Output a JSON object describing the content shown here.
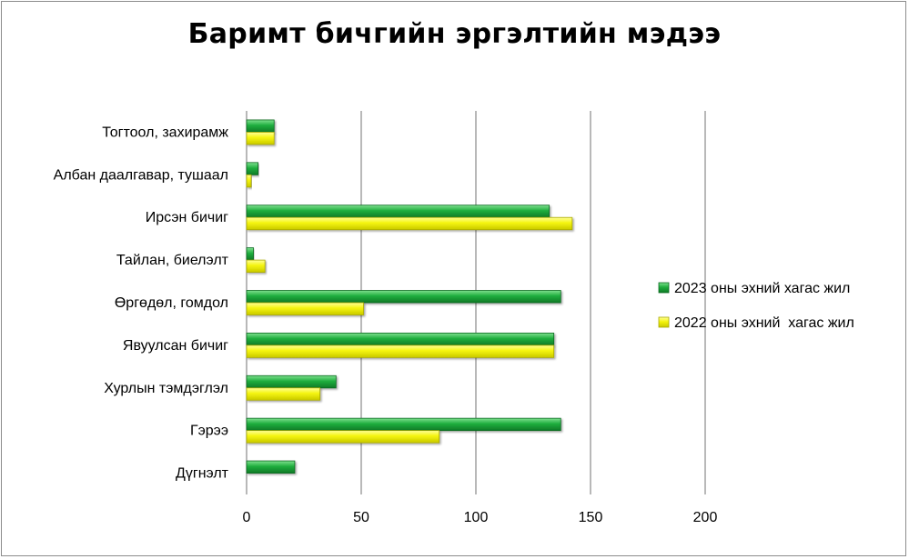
{
  "chart_data": {
    "type": "bar",
    "orientation": "horizontal",
    "title": "Баримт бичгийн эргэлтийн мэдээ",
    "categories": [
      "Тогтоол, захирамж",
      "Албан даалгавар, тушаал",
      "Ирсэн бичиг",
      "Тайлан, биелэлт",
      "Өргөдөл, гомдол",
      "Явуулсан бичиг",
      "Хурлын тэмдэглэл",
      "Гэрээ",
      "Дүгнэлт"
    ],
    "series": [
      {
        "name": "2023 оны эхний хагас жил",
        "color": "#1faa3c",
        "values": [
          12,
          5,
          132,
          3,
          137,
          134,
          39,
          137,
          21
        ]
      },
      {
        "name": "2022 оны эхний  хагас жил",
        "color": "#f2f20a",
        "values": [
          12,
          2,
          142,
          8,
          51,
          134,
          32,
          84,
          0
        ]
      }
    ],
    "xlim": [
      0,
      200
    ],
    "xticks": [
      "0",
      "50",
      "100",
      "150",
      "200"
    ],
    "grid": true,
    "legend_position": "right"
  }
}
